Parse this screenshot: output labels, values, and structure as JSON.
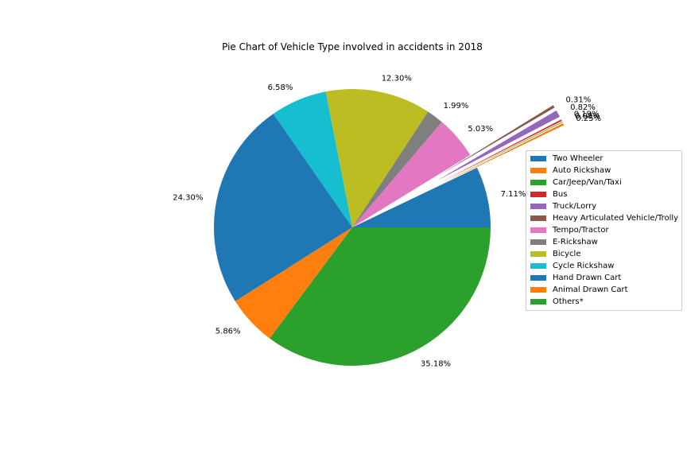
{
  "chart_data": {
    "type": "pie",
    "title": "Pie Chart of Vehicle Type involved in accidents in 2018",
    "start_angle_deg": 0,
    "direction": "counterclockwise",
    "legend_position": "right",
    "slices": [
      {
        "label": "Two Wheeler",
        "value": 7.11,
        "pct_label": "7.11%",
        "color": "#1f77b4",
        "exploded": false
      },
      {
        "label": "Auto Rickshaw",
        "value": 0.25,
        "pct_label": "0.25%",
        "color": "#ff7f0e",
        "exploded": true
      },
      {
        "label": "Car/Jeep/Van/Taxi",
        "value": 0.08,
        "pct_label": "0.08%",
        "color": "#2ca02c",
        "exploded": true
      },
      {
        "label": "Bus",
        "value": 0.19,
        "pct_label": "0.19%",
        "color": "#d62728",
        "exploded": true
      },
      {
        "label": "Truck/Lorry",
        "value": 0.82,
        "pct_label": "0.82%",
        "color": "#9467bd",
        "exploded": true
      },
      {
        "label": "Heavy Articulated Vehicle/Trolly",
        "value": 0.31,
        "pct_label": "0.31%",
        "color": "#8c564b",
        "exploded": true
      },
      {
        "label": "Tempo/Tractor",
        "value": 5.03,
        "pct_label": "5.03%",
        "color": "#e377c2",
        "exploded": false
      },
      {
        "label": "E-Rickshaw",
        "value": 1.99,
        "pct_label": "1.99%",
        "color": "#7f7f7f",
        "exploded": false
      },
      {
        "label": "Bicycle",
        "value": 12.3,
        "pct_label": "12.30%",
        "color": "#bcbd22",
        "exploded": false
      },
      {
        "label": "Cycle Rickshaw",
        "value": 6.58,
        "pct_label": "6.58%",
        "color": "#17becf",
        "exploded": false
      },
      {
        "label": "Hand Drawn Cart",
        "value": 24.3,
        "pct_label": "24.30%",
        "color": "#1f77b4",
        "exploded": false
      },
      {
        "label": "Animal Drawn Cart",
        "value": 5.86,
        "pct_label": "5.86%",
        "color": "#ff7f0e",
        "exploded": false
      },
      {
        "label": "Others*",
        "value": 35.18,
        "pct_label": "35.18%",
        "color": "#2ca02c",
        "exploded": false
      }
    ]
  }
}
